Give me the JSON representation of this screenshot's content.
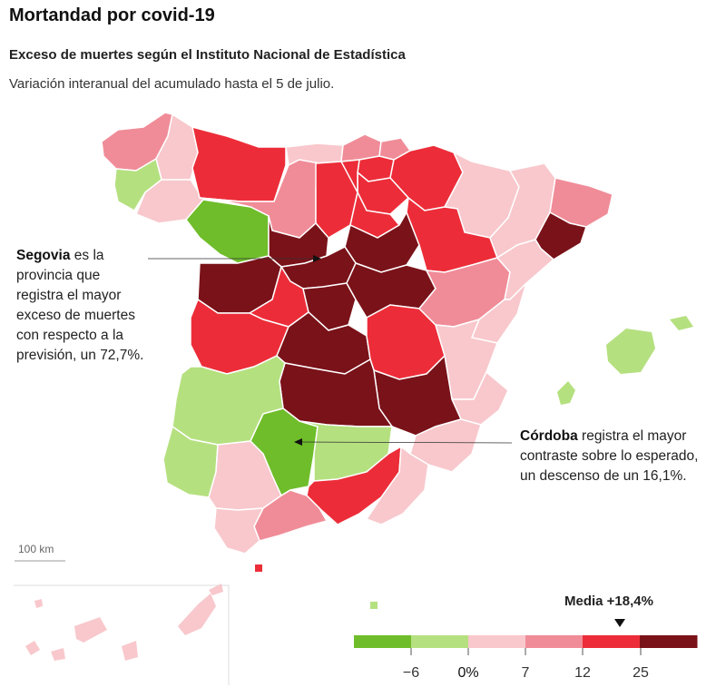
{
  "header": {
    "title": "Mortandad por covid-19",
    "subtitle": "Exceso de muertes según el Instituto Nacional de Estadística",
    "description": "Variación interanual del acumulado hasta el 5 de julio."
  },
  "annotations": {
    "segovia": {
      "name": "Segovia",
      "text": "es la provincia que registra el mayor exceso de muertes con respecto a la previsión, un 72,7%."
    },
    "cordoba": {
      "name": "Córdoba",
      "text": "registra el mayor contraste sobre lo esperado, un descenso de un 16,1%."
    }
  },
  "scale_bar": {
    "label": "100 km"
  },
  "legend": {
    "media_label": "Media +18,4%",
    "media_value": 18.4,
    "ticks": [
      "−6",
      "0%",
      "7",
      "12",
      "25"
    ],
    "bins": [
      {
        "range": "< -6",
        "color": "#6fbd2a"
      },
      {
        "range": "-6 – 0",
        "color": "#b5e080"
      },
      {
        "range": "0 – 7",
        "color": "#f8c8cc"
      },
      {
        "range": "7 – 12",
        "color": "#f08c98"
      },
      {
        "range": "12 – 25",
        "color": "#ec2d39"
      },
      {
        "range": "> 25",
        "color": "#7a1219"
      }
    ]
  }
}
